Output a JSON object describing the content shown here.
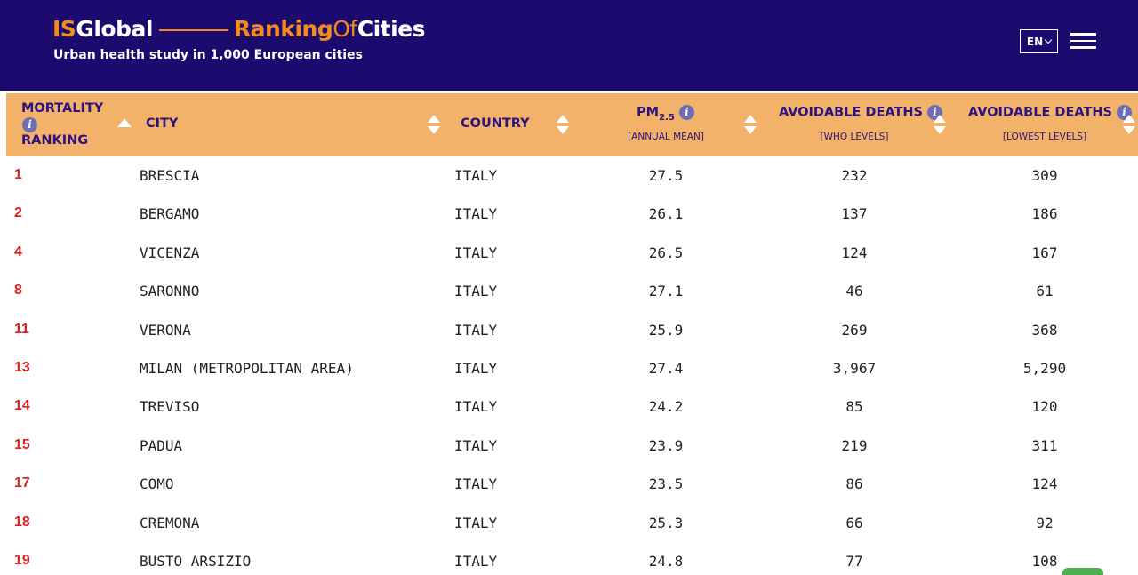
{
  "header": {
    "brand": {
      "is": "IS",
      "global": "Global",
      "ranking": "Ranking",
      "of": "Of",
      "cities": "Cities"
    },
    "subtitle": "Urban health study in 1,000 European cities",
    "language": "EN"
  },
  "table": {
    "headers": {
      "rank_line1": "MORTALITY",
      "rank_line2": "RANKING",
      "city": "CITY",
      "country": "COUNTRY",
      "pm_main": "PM",
      "pm_sub": "2.5",
      "pm_note": "[ANNUAL MEAN]",
      "who_title": "AVOIDABLE DEATHS",
      "who_note": "[WHO LEVELS]",
      "low_title": "AVOIDABLE DEATHS",
      "low_note": "[LOWEST LEVELS]"
    },
    "rows": [
      {
        "rank": "1",
        "city": "BRESCIA",
        "country": "ITALY",
        "pm": "27.5",
        "who": "232",
        "low": "309"
      },
      {
        "rank": "2",
        "city": "BERGAMO",
        "country": "ITALY",
        "pm": "26.1",
        "who": "137",
        "low": "186"
      },
      {
        "rank": "4",
        "city": "VICENZA",
        "country": "ITALY",
        "pm": "26.5",
        "who": "124",
        "low": "167"
      },
      {
        "rank": "8",
        "city": "SARONNO",
        "country": "ITALY",
        "pm": "27.1",
        "who": "46",
        "low": "61"
      },
      {
        "rank": "11",
        "city": "VERONA",
        "country": "ITALY",
        "pm": "25.9",
        "who": "269",
        "low": "368"
      },
      {
        "rank": "13",
        "city": "MILAN (METROPOLITAN AREA)",
        "country": "ITALY",
        "pm": "27.4",
        "who": "3,967",
        "low": "5,290"
      },
      {
        "rank": "14",
        "city": "TREVISO",
        "country": "ITALY",
        "pm": "24.2",
        "who": "85",
        "low": "120"
      },
      {
        "rank": "15",
        "city": "PADUA",
        "country": "ITALY",
        "pm": "23.9",
        "who": "219",
        "low": "311"
      },
      {
        "rank": "17",
        "city": "COMO",
        "country": "ITALY",
        "pm": "23.5",
        "who": "86",
        "low": "124"
      },
      {
        "rank": "18",
        "city": "CREMONA",
        "country": "ITALY",
        "pm": "25.3",
        "who": "66",
        "low": "92"
      },
      {
        "rank": "19",
        "city": "BUSTO ARSIZIO",
        "country": "ITALY",
        "pm": "24.8",
        "who": "77",
        "low": "108"
      }
    ]
  },
  "colors": {
    "header_bg": "#1d0a6e",
    "accent_orange": "#f28c1c",
    "table_header_bg": "#f2b26a",
    "header_text": "#2d137e",
    "rank_red": "#d8231f",
    "info_icon": "#6e6db2"
  },
  "icons": [
    "info-icon",
    "sort-arrows-icon",
    "chevron-down-icon",
    "hamburger-menu-icon"
  ]
}
